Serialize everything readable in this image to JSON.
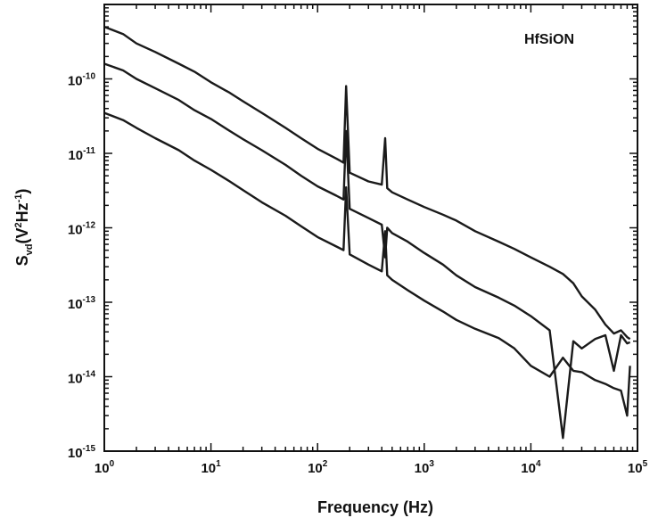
{
  "chart_data": {
    "type": "line",
    "title": "",
    "annotation": "HfSiON",
    "xlabel": "Frequency (Hz)",
    "ylabel": {
      "main": "S",
      "sub": "vd",
      "rest": "(V",
      "sup1": "2",
      "mid": "Hz",
      "sup2": "-1",
      "end": ")"
    },
    "x_scale": "log",
    "y_scale": "log",
    "xlim": [
      1,
      100000
    ],
    "ylim": [
      1e-15,
      1e-09
    ],
    "grid": false,
    "legend": "none",
    "x_ticks": [
      {
        "value": 1,
        "base": "10",
        "exp": "0"
      },
      {
        "value": 10,
        "base": "10",
        "exp": "1"
      },
      {
        "value": 100,
        "base": "10",
        "exp": "2"
      },
      {
        "value": 1000,
        "base": "10",
        "exp": "3"
      },
      {
        "value": 10000,
        "base": "10",
        "exp": "4"
      },
      {
        "value": 100000,
        "base": "10",
        "exp": "5"
      }
    ],
    "y_ticks": [
      {
        "value": 1e-10,
        "base": "10",
        "exp": "-10"
      },
      {
        "value": 1e-11,
        "base": "10",
        "exp": "-11"
      },
      {
        "value": 1e-12,
        "base": "10",
        "exp": "-12"
      },
      {
        "value": 1e-13,
        "base": "10",
        "exp": "-13"
      },
      {
        "value": 1e-14,
        "base": "10",
        "exp": "-14"
      },
      {
        "value": 1e-15,
        "base": "10",
        "exp": "-15"
      }
    ],
    "line_color": "#1a1a1a",
    "series": [
      {
        "x": [
          1,
          1.5,
          2,
          3,
          5,
          7,
          10,
          15,
          20,
          30,
          50,
          70,
          100,
          150,
          175,
          185,
          200,
          300,
          400,
          430,
          450,
          500,
          700,
          1000,
          1500,
          2000,
          3000,
          5000,
          7000,
          10000,
          15000,
          20000,
          25000,
          30000,
          40000,
          50000,
          60000,
          70000,
          80000,
          85000
        ],
        "y": [
          5e-10,
          4e-10,
          3e-10,
          2.3e-10,
          1.6e-10,
          1.25e-10,
          9e-11,
          6.5e-11,
          5e-11,
          3.5e-11,
          2.2e-11,
          1.6e-11,
          1.15e-11,
          8.5e-12,
          7.5e-12,
          8e-11,
          5.5e-12,
          4.2e-12,
          3.8e-12,
          1.6e-11,
          3.4e-12,
          3e-12,
          2.4e-12,
          1.9e-12,
          1.5e-12,
          1.25e-12,
          9e-13,
          6.5e-13,
          5.2e-13,
          4e-13,
          3e-13,
          2.4e-13,
          1.8e-13,
          1.2e-13,
          8e-14,
          5e-14,
          3.8e-14,
          4.2e-14,
          3.4e-14,
          3.2e-14
        ]
      },
      {
        "x": [
          1,
          1.5,
          2,
          3,
          5,
          7,
          10,
          15,
          20,
          30,
          50,
          70,
          100,
          150,
          175,
          185,
          200,
          300,
          400,
          430,
          450,
          500,
          700,
          1000,
          1500,
          2000,
          3000,
          5000,
          7000,
          10000,
          15000,
          20000,
          25000,
          30000,
          40000,
          50000,
          60000,
          70000,
          80000,
          85000
        ],
        "y": [
          1.6e-10,
          1.3e-10,
          1e-10,
          7.5e-11,
          5.2e-11,
          3.8e-11,
          2.9e-11,
          2e-11,
          1.55e-11,
          1.1e-11,
          7e-12,
          5e-12,
          3.6e-12,
          2.7e-12,
          2.4e-12,
          2e-11,
          1.8e-12,
          1.35e-12,
          1.1e-12,
          4e-13,
          1e-12,
          8.5e-13,
          6.5e-13,
          4.6e-13,
          3.2e-13,
          2.3e-13,
          1.6e-13,
          1.15e-13,
          9e-14,
          6.5e-14,
          4.2e-14,
          1.5e-15,
          3e-14,
          2.4e-14,
          3.2e-14,
          3.6e-14,
          1.2e-14,
          3.6e-14,
          2.8e-14,
          2.9e-14
        ]
      },
      {
        "x": [
          1,
          1.5,
          2,
          3,
          5,
          7,
          10,
          15,
          20,
          30,
          50,
          70,
          100,
          150,
          175,
          185,
          200,
          300,
          400,
          430,
          450,
          500,
          700,
          1000,
          1500,
          2000,
          3000,
          5000,
          7000,
          10000,
          15000,
          20000,
          25000,
          30000,
          40000,
          50000,
          60000,
          70000,
          80000,
          85000
        ],
        "y": [
          3.5e-11,
          2.8e-11,
          2.2e-11,
          1.6e-11,
          1.1e-11,
          8e-12,
          6e-12,
          4.2e-12,
          3.2e-12,
          2.2e-12,
          1.45e-12,
          1.05e-12,
          7.5e-13,
          5.6e-13,
          5e-13,
          3.5e-12,
          4.4e-13,
          3.2e-13,
          2.6e-13,
          9e-13,
          2.3e-13,
          2e-13,
          1.45e-13,
          1.05e-13,
          7.5e-14,
          5.8e-14,
          4.4e-14,
          3.3e-14,
          2.4e-14,
          1.4e-14,
          1e-14,
          1.8e-14,
          1.2e-14,
          1.15e-14,
          9e-15,
          8e-15,
          7e-15,
          6.5e-15,
          3e-15,
          1.4e-14
        ]
      }
    ]
  }
}
